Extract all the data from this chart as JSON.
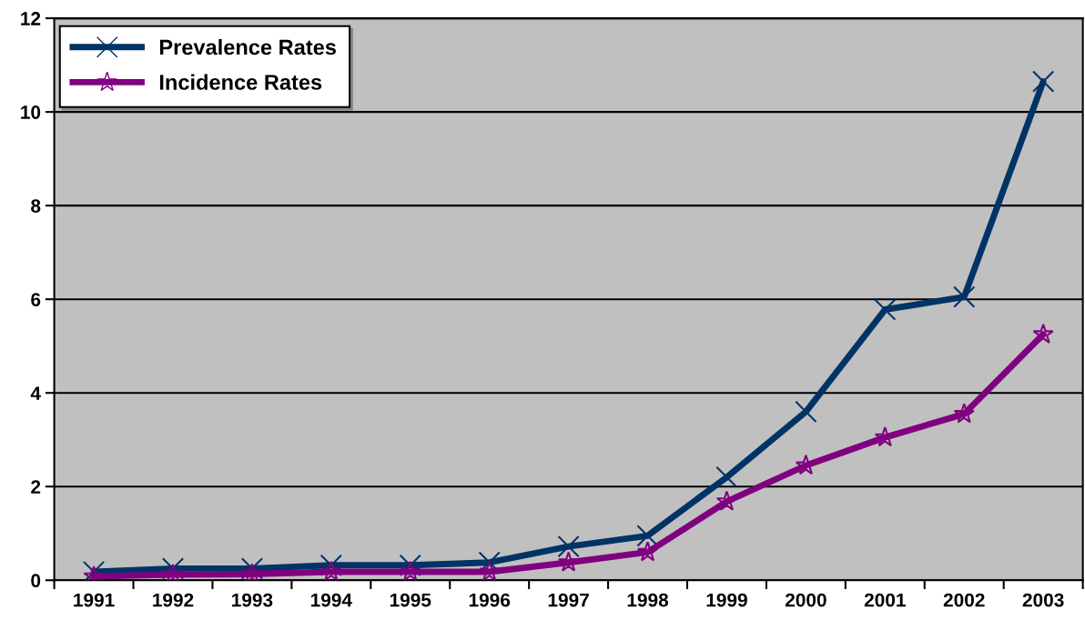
{
  "chart_data": {
    "type": "line",
    "categories": [
      "1991",
      "1992",
      "1993",
      "1994",
      "1995",
      "1996",
      "1997",
      "1998",
      "1999",
      "2000",
      "2001",
      "2002",
      "2003"
    ],
    "series": [
      {
        "name": "Prevalence Rates",
        "color": "#003366",
        "marker": "cross",
        "values": [
          0.18,
          0.25,
          0.25,
          0.32,
          0.32,
          0.38,
          0.72,
          0.95,
          2.2,
          3.6,
          5.78,
          6.05,
          10.65
        ]
      },
      {
        "name": "Incidence Rates",
        "color": "#800080",
        "marker": "star",
        "values": [
          0.08,
          0.12,
          0.13,
          0.18,
          0.18,
          0.18,
          0.38,
          0.6,
          1.68,
          2.45,
          3.05,
          3.55,
          5.25
        ]
      }
    ],
    "ylim": [
      0,
      12
    ],
    "yticks": [
      0,
      2,
      4,
      6,
      8,
      10,
      12
    ],
    "grid": "y",
    "legend": "top left",
    "line_style": "solid"
  }
}
